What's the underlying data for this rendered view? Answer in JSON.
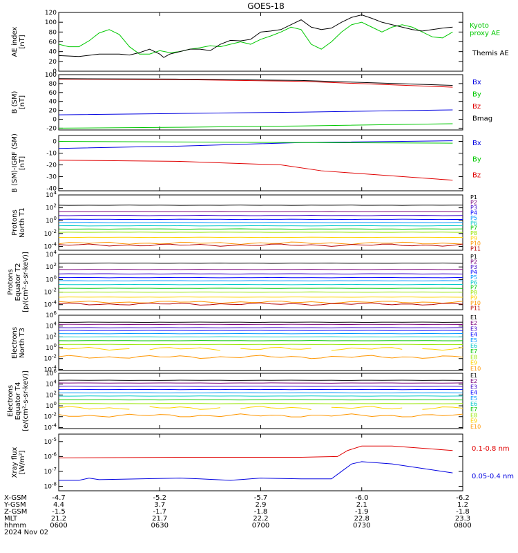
{
  "title": "GOES-18",
  "colors": {
    "black": "#000000",
    "red": "#e00000",
    "green": "#00c800",
    "blue": "#0000e0",
    "P": [
      "#000000",
      "#7b007b",
      "#3c00c8",
      "#0000ff",
      "#0096ff",
      "#00c8c8",
      "#00c800",
      "#96e600",
      "#ffd200",
      "#ff9600",
      "#b40000"
    ],
    "E": [
      "#000000",
      "#7b007b",
      "#3c00c8",
      "#0000ff",
      "#0096ff",
      "#00c8c8",
      "#00c800",
      "#96e600",
      "#ffd200",
      "#ff9600"
    ]
  },
  "chart_data": [
    {
      "type": "line",
      "id": "ae",
      "ylabel": [
        "AE index",
        "[nT]"
      ],
      "ylim": [
        0,
        120
      ],
      "yticks": [
        "0",
        "20",
        "40",
        "60",
        "80",
        "100",
        "120"
      ],
      "x": [
        "0600",
        "0630",
        "0700",
        "0730",
        "0800"
      ],
      "series": [
        {
          "name": "Kyoto proxy AE",
          "legend": [
            "Kyoto",
            "proxy AE"
          ],
          "color": "green",
          "values": [
            [
              0,
              55
            ],
            [
              5,
              50
            ],
            [
              10,
              50
            ],
            [
              15,
              62
            ],
            [
              20,
              78
            ],
            [
              25,
              85
            ],
            [
              30,
              75
            ],
            [
              35,
              50
            ],
            [
              40,
              35
            ],
            [
              45,
              35
            ],
            [
              50,
              42
            ],
            [
              55,
              38
            ],
            [
              60,
              40
            ],
            [
              65,
              45
            ],
            [
              70,
              48
            ],
            [
              75,
              52
            ],
            [
              80,
              50
            ],
            [
              85,
              55
            ],
            [
              90,
              60
            ],
            [
              95,
              55
            ],
            [
              100,
              65
            ],
            [
              105,
              72
            ],
            [
              110,
              80
            ],
            [
              115,
              90
            ],
            [
              120,
              85
            ],
            [
              125,
              55
            ],
            [
              130,
              45
            ],
            [
              135,
              60
            ],
            [
              140,
              80
            ],
            [
              145,
              95
            ],
            [
              150,
              100
            ],
            [
              155,
              90
            ],
            [
              160,
              80
            ],
            [
              165,
              90
            ],
            [
              170,
              95
            ],
            [
              175,
              90
            ],
            [
              180,
              80
            ],
            [
              185,
              70
            ],
            [
              190,
              68
            ],
            [
              195,
              80
            ]
          ]
        },
        {
          "name": "Themis AE",
          "legend": [
            "Themis AE"
          ],
          "color": "black",
          "values": [
            [
              0,
              32
            ],
            [
              10,
              30
            ],
            [
              20,
              35
            ],
            [
              30,
              35
            ],
            [
              35,
              33
            ],
            [
              40,
              38
            ],
            [
              45,
              45
            ],
            [
              50,
              35
            ],
            [
              52,
              28
            ],
            [
              55,
              35
            ],
            [
              60,
              40
            ],
            [
              65,
              45
            ],
            [
              70,
              45
            ],
            [
              75,
              42
            ],
            [
              80,
              55
            ],
            [
              85,
              63
            ],
            [
              90,
              62
            ],
            [
              95,
              65
            ],
            [
              100,
              80
            ],
            [
              105,
              82
            ],
            [
              110,
              85
            ],
            [
              115,
              95
            ],
            [
              120,
              105
            ],
            [
              125,
              90
            ],
            [
              130,
              85
            ],
            [
              135,
              88
            ],
            [
              140,
              100
            ],
            [
              145,
              110
            ],
            [
              150,
              115
            ],
            [
              155,
              108
            ],
            [
              160,
              100
            ],
            [
              165,
              95
            ],
            [
              170,
              90
            ],
            [
              175,
              85
            ],
            [
              180,
              82
            ],
            [
              185,
              85
            ],
            [
              190,
              88
            ],
            [
              195,
              90
            ]
          ]
        }
      ]
    },
    {
      "type": "line",
      "id": "bsm",
      "ylabel": [
        "B (SM)",
        "[nT]"
      ],
      "ylim": [
        -24,
        100
      ],
      "yticks": [
        "-20",
        "0",
        "20",
        "40",
        "60",
        "80",
        "100"
      ],
      "x": [
        "0600",
        "0630",
        "0700",
        "0730",
        "0800"
      ],
      "series": [
        {
          "name": "Bx",
          "color": "blue",
          "values": [
            [
              0,
              10
            ],
            [
              60,
              13
            ],
            [
              120,
              16
            ],
            [
              195,
              21
            ]
          ]
        },
        {
          "name": "By",
          "color": "green",
          "values": [
            [
              0,
              -20
            ],
            [
              60,
              -18
            ],
            [
              120,
              -15
            ],
            [
              195,
              -10
            ]
          ]
        },
        {
          "name": "Bz",
          "color": "red",
          "values": [
            [
              0,
              90
            ],
            [
              60,
              89
            ],
            [
              120,
              85
            ],
            [
              195,
              72
            ]
          ]
        },
        {
          "name": "Bmag",
          "color": "black",
          "values": [
            [
              0,
              91
            ],
            [
              60,
              90
            ],
            [
              120,
              87
            ],
            [
              195,
              76
            ]
          ]
        }
      ]
    },
    {
      "type": "line",
      "id": "bigrf",
      "ylabel": [
        "B (SM)-IGRF (SM)",
        "[nT]"
      ],
      "ylim": [
        -42,
        5
      ],
      "yticks": [
        "-40",
        "-30",
        "-20",
        "-10",
        "0"
      ],
      "x": [
        "0600",
        "0630",
        "0700",
        "0730",
        "0800"
      ],
      "series": [
        {
          "name": "Bx",
          "color": "blue",
          "values": [
            [
              0,
              -6
            ],
            [
              60,
              -4
            ],
            [
              120,
              -1
            ],
            [
              195,
              0.5
            ]
          ]
        },
        {
          "name": "By",
          "color": "green",
          "values": [
            [
              0,
              0
            ],
            [
              60,
              -0.5
            ],
            [
              120,
              -1
            ],
            [
              195,
              -1.5
            ]
          ]
        },
        {
          "name": "Bz",
          "color": "red",
          "values": [
            [
              0,
              -16
            ],
            [
              60,
              -17
            ],
            [
              110,
              -20
            ],
            [
              130,
              -25
            ],
            [
              195,
              -33
            ]
          ]
        }
      ]
    },
    {
      "type": "line",
      "id": "pt1",
      "ylabel": [
        "Protons",
        "North T1"
      ],
      "ylog": true,
      "ylim": [
        -4.6,
        4
      ],
      "yticks": [
        "10^-4",
        "10^-2",
        "10^0",
        "10^2",
        "10^4"
      ],
      "legend": [
        "P1",
        "P2",
        "P3",
        "P4",
        "P5",
        "P6",
        "P7",
        "P8",
        "P9",
        "P10",
        "P11"
      ],
      "levels": [
        2.4,
        1.4,
        0.8,
        0.2,
        -0.3,
        -0.8,
        -1.3,
        -1.8,
        -2.6,
        -3.5,
        -3.8
      ]
    },
    {
      "type": "line",
      "id": "pt2",
      "ylabel": [
        "Protons",
        "Equator T2",
        "[p/(cm²-s-sr-keV)]"
      ],
      "ylog": true,
      "ylim": [
        -4.8,
        4
      ],
      "yticks": [
        "10^-4",
        "10^-2",
        "10^0",
        "10^2",
        "10^4"
      ],
      "legend": [
        "P1",
        "P2",
        "P3",
        "P4",
        "P5",
        "P6",
        "P7",
        "P8",
        "P9",
        "P10",
        "P11"
      ],
      "levels": [
        2.6,
        1.6,
        0.9,
        0.3,
        -0.2,
        -0.8,
        -1.4,
        -2.0,
        -2.8,
        -3.6,
        -3.9
      ]
    },
    {
      "type": "line",
      "id": "et3",
      "ylabel": [
        "Electrons",
        "North T3"
      ],
      "ylog": true,
      "ylim": [
        -4.2,
        6
      ],
      "yticks": [
        "10^-4",
        "10^-2",
        "10^0",
        "10^2",
        "10^4",
        "10^6"
      ],
      "legend": [
        "E1",
        "E2",
        "E3",
        "E4",
        "E5",
        "E6",
        "E7",
        "E8",
        "E9",
        "E10"
      ],
      "levels": [
        4.7,
        4.3,
        3.7,
        3.2,
        2.6,
        2.0,
        1.3,
        0.6,
        -0.2,
        -1.7
      ]
    },
    {
      "type": "line",
      "id": "et4",
      "ylabel": [
        "Electrons",
        "Equator T4",
        "[e/(cm²-s-sr-keV)]"
      ],
      "ylog": true,
      "ylim": [
        -4.2,
        6
      ],
      "yticks": [
        "10^-4",
        "10^-2",
        "10^0",
        "10^2",
        "10^4",
        "10^6"
      ],
      "legend": [
        "E1",
        "E2",
        "E3",
        "E4",
        "E5",
        "E6",
        "E7",
        "E8",
        "E9",
        "E10"
      ],
      "levels": [
        4.7,
        4.2,
        3.6,
        3.0,
        2.4,
        1.8,
        1.1,
        0.4,
        -0.4,
        -1.8
      ]
    },
    {
      "type": "line",
      "id": "xray",
      "ylabel": [
        "Xray flux",
        "[W/m²]"
      ],
      "ylog": true,
      "ylim": [
        -8.3,
        -4.5
      ],
      "yticks": [
        "10^-8",
        "10^-7",
        "10^-6",
        "10^-5"
      ],
      "x": [
        "0600",
        "0630",
        "0700",
        "0730",
        "0800"
      ],
      "series": [
        {
          "name": "0.1-0.8 nm",
          "color": "red",
          "values": [
            [
              0,
              -6.1
            ],
            [
              60,
              -6.05
            ],
            [
              120,
              -6.05
            ],
            [
              138,
              -6.0
            ],
            [
              143,
              -5.6
            ],
            [
              150,
              -5.3
            ],
            [
              165,
              -5.3
            ],
            [
              195,
              -5.6
            ]
          ]
        },
        {
          "name": "0.05-0.4 nm",
          "color": "blue",
          "values": [
            [
              0,
              -7.6
            ],
            [
              10,
              -7.6
            ],
            [
              15,
              -7.45
            ],
            [
              20,
              -7.55
            ],
            [
              40,
              -7.5
            ],
            [
              60,
              -7.45
            ],
            [
              70,
              -7.5
            ],
            [
              85,
              -7.6
            ],
            [
              100,
              -7.45
            ],
            [
              120,
              -7.5
            ],
            [
              135,
              -7.5
            ],
            [
              140,
              -7.0
            ],
            [
              145,
              -6.5
            ],
            [
              150,
              -6.35
            ],
            [
              165,
              -6.5
            ],
            [
              195,
              -7.1
            ]
          ]
        }
      ]
    }
  ],
  "footer": {
    "rows": [
      {
        "label": "X-GSM",
        "values": [
          "-4.7",
          "-5.2",
          "-5.7",
          "-6.0",
          "-6.2"
        ]
      },
      {
        "label": "Y-GSM",
        "values": [
          "4.4",
          "3.7",
          "2.9",
          "2.1",
          "1.2"
        ]
      },
      {
        "label": "Z-GSM",
        "values": [
          "-1.5",
          "-1.7",
          "-1.8",
          "-1.9",
          "-1.8"
        ]
      },
      {
        "label": "MLT",
        "values": [
          "21.2",
          "21.7",
          "22.2",
          "22.8",
          "23.3"
        ]
      },
      {
        "label": "hhmm",
        "values": [
          "0600",
          "0630",
          "0700",
          "0730",
          "0800"
        ]
      }
    ],
    "date": "2024 Nov 02"
  }
}
